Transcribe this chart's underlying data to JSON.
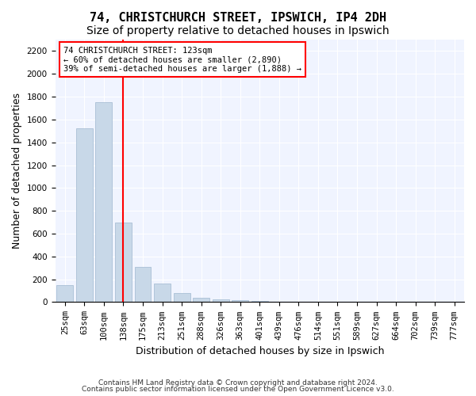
{
  "title1": "74, CHRISTCHURCH STREET, IPSWICH, IP4 2DH",
  "title2": "Size of property relative to detached houses in Ipswich",
  "xlabel": "Distribution of detached houses by size in Ipswich",
  "ylabel": "Number of detached properties",
  "categories": [
    "25sqm",
    "63sqm",
    "100sqm",
    "138sqm",
    "175sqm",
    "213sqm",
    "251sqm",
    "288sqm",
    "326sqm",
    "363sqm",
    "401sqm",
    "439sqm",
    "476sqm",
    "514sqm",
    "551sqm",
    "589sqm",
    "627sqm",
    "664sqm",
    "702sqm",
    "739sqm",
    "777sqm"
  ],
  "values": [
    150,
    1520,
    1750,
    700,
    310,
    160,
    80,
    40,
    25,
    15,
    10,
    5,
    3,
    2,
    1,
    1,
    1,
    0,
    0,
    0,
    0
  ],
  "bar_color": "#c8d8e8",
  "bar_edge_color": "#a0b8d0",
  "vline_x": 3,
  "vline_color": "red",
  "annotation_text": "74 CHRISTCHURCH STREET: 123sqm\n← 60% of detached houses are smaller (2,890)\n39% of semi-detached houses are larger (1,888) →",
  "annotation_box_color": "white",
  "annotation_box_edge": "red",
  "ylim": [
    0,
    2300
  ],
  "yticks": [
    0,
    200,
    400,
    600,
    800,
    1000,
    1200,
    1400,
    1600,
    1800,
    2000,
    2200
  ],
  "footer1": "Contains HM Land Registry data © Crown copyright and database right 2024.",
  "footer2": "Contains public sector information licensed under the Open Government Licence v3.0.",
  "bg_color": "#f0f4ff",
  "title1_fontsize": 11,
  "title2_fontsize": 10,
  "tick_fontsize": 7.5,
  "label_fontsize": 9
}
